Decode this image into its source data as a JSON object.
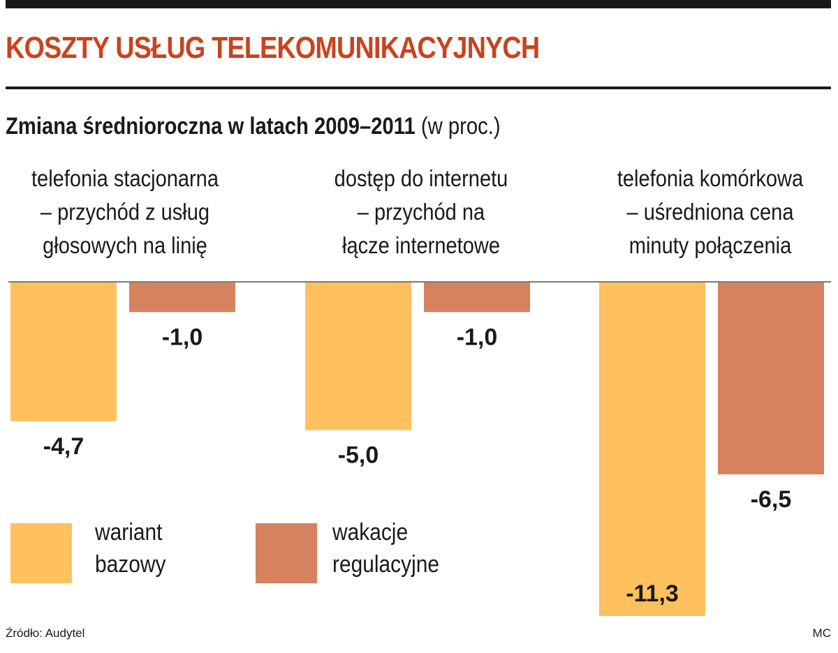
{
  "title": "KOSZTY USŁUG TELEKOMUNIKACYJNYCH",
  "subtitle_bold": "Zmiana średnioroczna w latach 2009–2011",
  "subtitle_unit": "(w proc.)",
  "source": "Źródło: Audytel",
  "credit": "MC",
  "colors": {
    "title": "#c8431f",
    "bazowy": "#fec15e",
    "wakacje": "#d6825e"
  },
  "legend": [
    {
      "label": "wariant\nbazowy",
      "color": "#fec15e"
    },
    {
      "label": "wakacje\nregulacyjne",
      "color": "#d6825e"
    }
  ],
  "chart_data": {
    "type": "bar",
    "title": "KOSZTY USŁUG TELEKOMUNIKACYJNYCH",
    "subtitle": "Zmiana średnioroczna w latach 2009–2011 (w proc.)",
    "categories": [
      "telefonia stacjonarna\n– przychód z usług\ngłosowych na linię",
      "dostęp do internetu\n– przychód na\nłącze internetowe",
      "telefonia komórkowa\n– uśredniona cena\nminuty połączenia"
    ],
    "series": [
      {
        "name": "wariant bazowy",
        "values": [
          -4.7,
          -5.0,
          -11.3
        ],
        "labels": [
          "-4,7",
          "-5,0",
          "-11,3"
        ]
      },
      {
        "name": "wakacje regulacyjne",
        "values": [
          -1.0,
          -1.0,
          -6.5
        ],
        "labels": [
          "-1,0",
          "-1,0",
          "-6,5"
        ]
      }
    ],
    "ylim": [
      -11.3,
      0
    ],
    "grid": false,
    "legend_position": "bottom-left"
  }
}
